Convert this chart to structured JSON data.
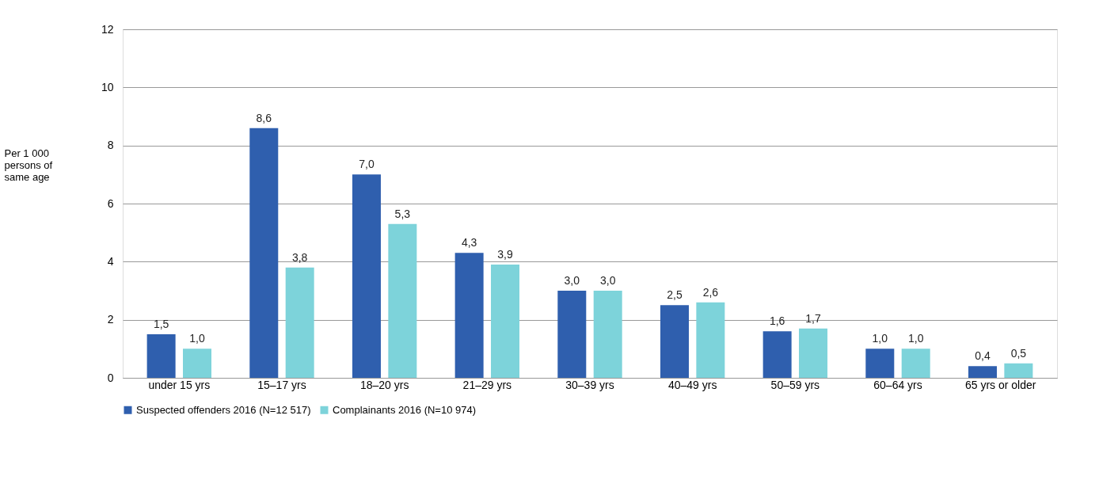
{
  "chart_data": {
    "type": "bar",
    "ylabel": "Per 1 000\npersons of\nsame age",
    "categories": [
      "under 15 yrs",
      "15–17 yrs",
      "18–20 yrs",
      "21–29 yrs",
      "30–39 yrs",
      "40–49 yrs",
      "50–59 yrs",
      "60–64 yrs",
      "65 yrs or older"
    ],
    "series": [
      {
        "name": "Suspected offenders 2016 (N=12 517)",
        "color": "#2f5fae",
        "values": [
          1.5,
          8.6,
          7.0,
          4.3,
          3.0,
          2.5,
          1.6,
          1.0,
          0.4
        ],
        "value_labels": [
          "1,5",
          "8,6",
          "7,0",
          "4,3",
          "3,0",
          "2,5",
          "1,6",
          "1,0",
          "0,4"
        ]
      },
      {
        "name": "Complainants 2016 (N=10 974)",
        "color": "#7dd3da",
        "values": [
          1.0,
          3.8,
          5.3,
          3.9,
          3.0,
          2.6,
          1.7,
          1.0,
          0.5
        ],
        "value_labels": [
          "1,0",
          "3,8",
          "5,3",
          "3,9",
          "3,0",
          "2,6",
          "1,7",
          "1,0",
          "0,5"
        ]
      }
    ],
    "ylim": [
      0,
      12
    ],
    "yticks": [
      0,
      2,
      4,
      6,
      8,
      10,
      12
    ],
    "grid": "y",
    "legend": "bottom"
  }
}
